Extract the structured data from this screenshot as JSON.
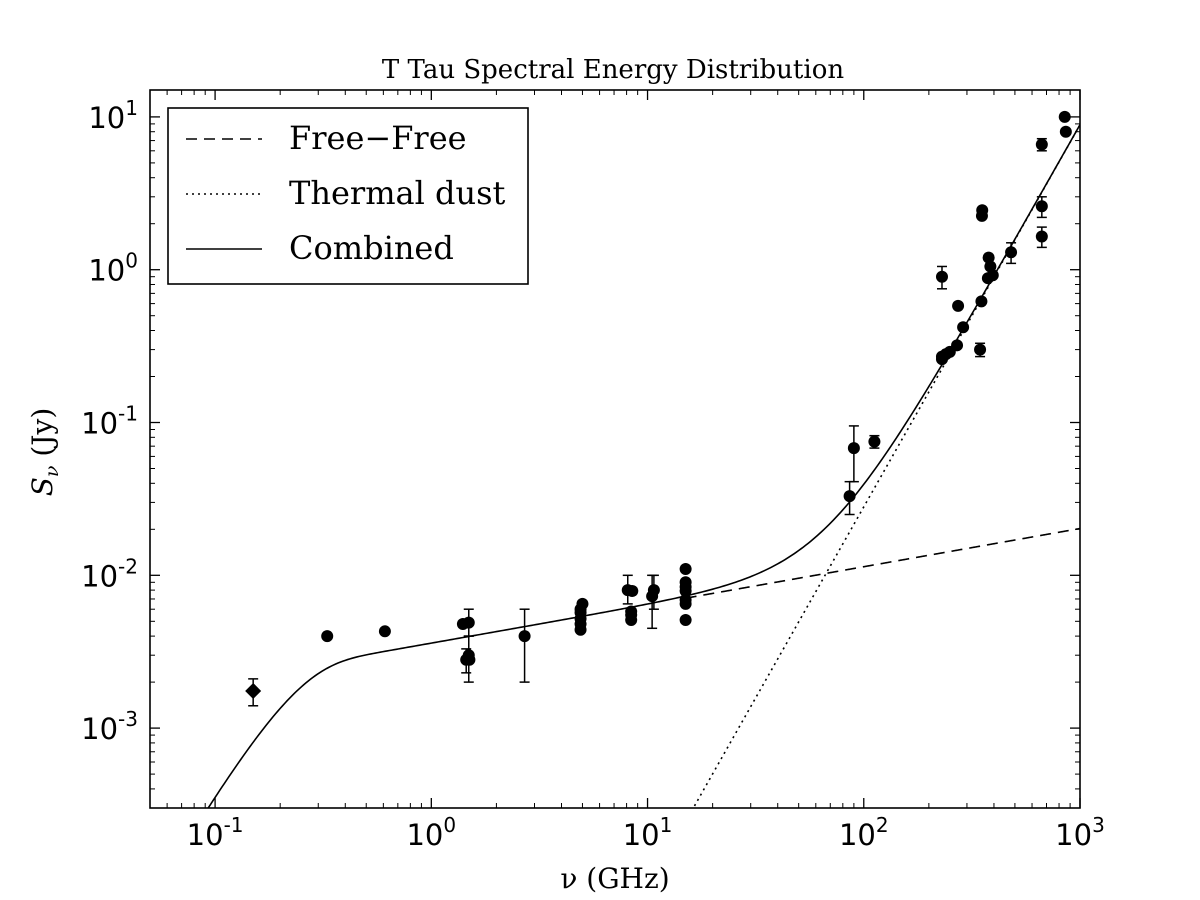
{
  "chart_data": {
    "type": "scatter",
    "title": "T Tau Spectral Energy Distribution",
    "xlabel": "ν (GHz)",
    "ylabel_main": "S",
    "ylabel_sub": "ν",
    "ylabel_unit": " (Jy)",
    "xscale": "log",
    "yscale": "log",
    "xlim": [
      0.05,
      1000
    ],
    "ylim": [
      0.0003,
      15
    ],
    "xticks": [
      {
        "value": 0.1,
        "base": "10",
        "exp": "-1"
      },
      {
        "value": 1,
        "base": "10",
        "exp": "0"
      },
      {
        "value": 10,
        "base": "10",
        "exp": "1"
      },
      {
        "value": 100,
        "base": "10",
        "exp": "2"
      },
      {
        "value": 1000,
        "base": "10",
        "exp": "3"
      }
    ],
    "yticks": [
      {
        "value": 0.001,
        "base": "10",
        "exp": "-3"
      },
      {
        "value": 0.01,
        "base": "10",
        "exp": "-2"
      },
      {
        "value": 0.1,
        "base": "10",
        "exp": "-1"
      },
      {
        "value": 1,
        "base": "10",
        "exp": "0"
      },
      {
        "value": 10,
        "base": "10",
        "exp": "1"
      }
    ],
    "grid": false,
    "legend_position": "top-left",
    "legend": [
      {
        "label": "Free−Free",
        "style": "dashed"
      },
      {
        "label": "Thermal dust",
        "style": "dotted"
      },
      {
        "label": "Combined",
        "style": "solid"
      }
    ],
    "models": {
      "free_free": {
        "scale": 0.0064,
        "index": 0.25,
        "turnover": 0.22
      },
      "thermal_dust": {
        "scale": 0.00815,
        "index": 2.5,
        "ref_freq": 61
      }
    },
    "diamond_points": [
      {
        "x": 0.15,
        "y": 0.00175,
        "ylo": 0.0014,
        "yhi": 0.0021
      }
    ],
    "points": [
      {
        "x": 0.33,
        "y": 0.004
      },
      {
        "x": 0.61,
        "y": 0.0043
      },
      {
        "x": 1.4,
        "y": 0.0048
      },
      {
        "x": 1.45,
        "y": 0.0028,
        "ylo": 0.0023,
        "yhi": 0.0033
      },
      {
        "x": 1.49,
        "y": 0.003,
        "ylo": 0.002,
        "yhi": 0.004
      },
      {
        "x": 1.49,
        "y": 0.0049,
        "ylo": 0.004,
        "yhi": 0.006
      },
      {
        "x": 1.5,
        "y": 0.0028
      },
      {
        "x": 2.7,
        "y": 0.004,
        "ylo": 0.002,
        "yhi": 0.006
      },
      {
        "x": 4.9,
        "y": 0.0044
      },
      {
        "x": 4.9,
        "y": 0.0048
      },
      {
        "x": 4.9,
        "y": 0.0052
      },
      {
        "x": 4.9,
        "y": 0.0057
      },
      {
        "x": 4.9,
        "y": 0.006
      },
      {
        "x": 5.0,
        "y": 0.0065
      },
      {
        "x": 8.1,
        "y": 0.008,
        "ylo": 0.0065,
        "yhi": 0.01
      },
      {
        "x": 8.4,
        "y": 0.0051
      },
      {
        "x": 8.4,
        "y": 0.0055
      },
      {
        "x": 8.4,
        "y": 0.0058
      },
      {
        "x": 8.5,
        "y": 0.0079
      },
      {
        "x": 10.5,
        "y": 0.0073,
        "ylo": 0.0045,
        "yhi": 0.01
      },
      {
        "x": 10.7,
        "y": 0.008,
        "ylo": 0.006,
        "yhi": 0.01
      },
      {
        "x": 15.0,
        "y": 0.0051
      },
      {
        "x": 15.0,
        "y": 0.0065
      },
      {
        "x": 15.0,
        "y": 0.0069
      },
      {
        "x": 15.0,
        "y": 0.0079
      },
      {
        "x": 15.0,
        "y": 0.0084
      },
      {
        "x": 15.0,
        "y": 0.009
      },
      {
        "x": 15.0,
        "y": 0.011
      },
      {
        "x": 86,
        "y": 0.033,
        "ylo": 0.025,
        "yhi": 0.041
      },
      {
        "x": 90,
        "y": 0.068,
        "ylo": 0.041,
        "yhi": 0.095
      },
      {
        "x": 112,
        "y": 0.075,
        "ylo": 0.068,
        "yhi": 0.082
      },
      {
        "x": 230,
        "y": 0.26
      },
      {
        "x": 230,
        "y": 0.27
      },
      {
        "x": 230,
        "y": 0.9,
        "ylo": 0.75,
        "yhi": 1.05
      },
      {
        "x": 240,
        "y": 0.28
      },
      {
        "x": 250,
        "y": 0.29
      },
      {
        "x": 270,
        "y": 0.32
      },
      {
        "x": 273,
        "y": 0.58
      },
      {
        "x": 288,
        "y": 0.42
      },
      {
        "x": 345,
        "y": 0.3,
        "ylo": 0.27,
        "yhi": 0.33
      },
      {
        "x": 350,
        "y": 0.62
      },
      {
        "x": 352,
        "y": 2.25
      },
      {
        "x": 353,
        "y": 2.45
      },
      {
        "x": 375,
        "y": 0.88
      },
      {
        "x": 378,
        "y": 1.2
      },
      {
        "x": 385,
        "y": 1.05
      },
      {
        "x": 395,
        "y": 0.92
      },
      {
        "x": 480,
        "y": 1.3,
        "ylo": 1.1,
        "yhi": 1.5
      },
      {
        "x": 666,
        "y": 6.6,
        "ylo": 6.0,
        "yhi": 7.2
      },
      {
        "x": 666,
        "y": 2.6,
        "ylo": 2.2,
        "yhi": 3.0
      },
      {
        "x": 666,
        "y": 1.65,
        "ylo": 1.4,
        "yhi": 1.9
      },
      {
        "x": 850,
        "y": 10.0
      },
      {
        "x": 860,
        "y": 8.0
      }
    ]
  }
}
